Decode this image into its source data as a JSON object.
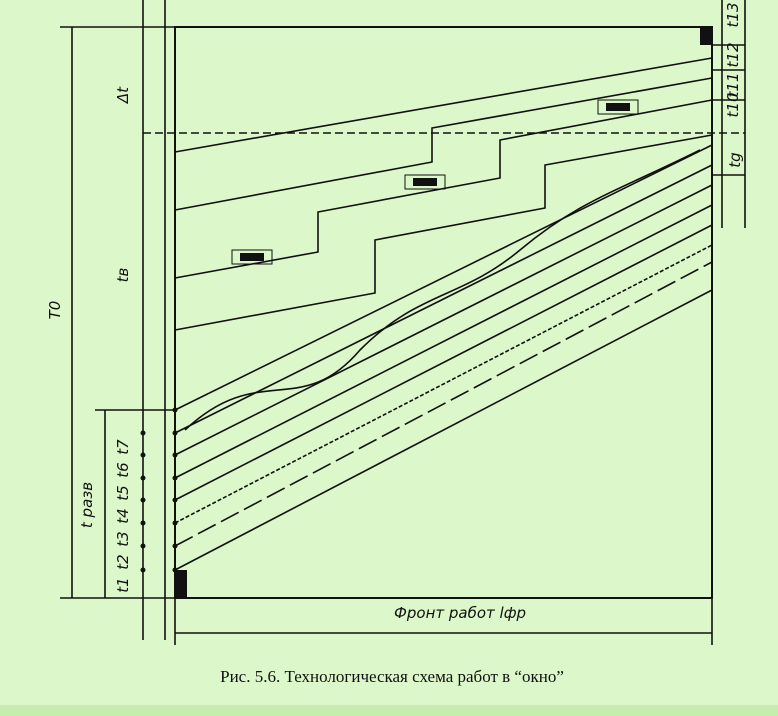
{
  "labels": {
    "delta_t": "Δt",
    "t_v": "tв",
    "T0": "T0",
    "t_razv": "t разв",
    "t_left": [
      "t1",
      "t2",
      "t3",
      "t4",
      "t5",
      "t6",
      "t7"
    ],
    "t_g": "tg",
    "t_right": [
      "t10",
      "t11",
      "t12",
      "t13"
    ],
    "front": "Фронт работ lфр"
  },
  "caption": "Рис. 5.6. Технологическая схема работ в “окно”"
}
